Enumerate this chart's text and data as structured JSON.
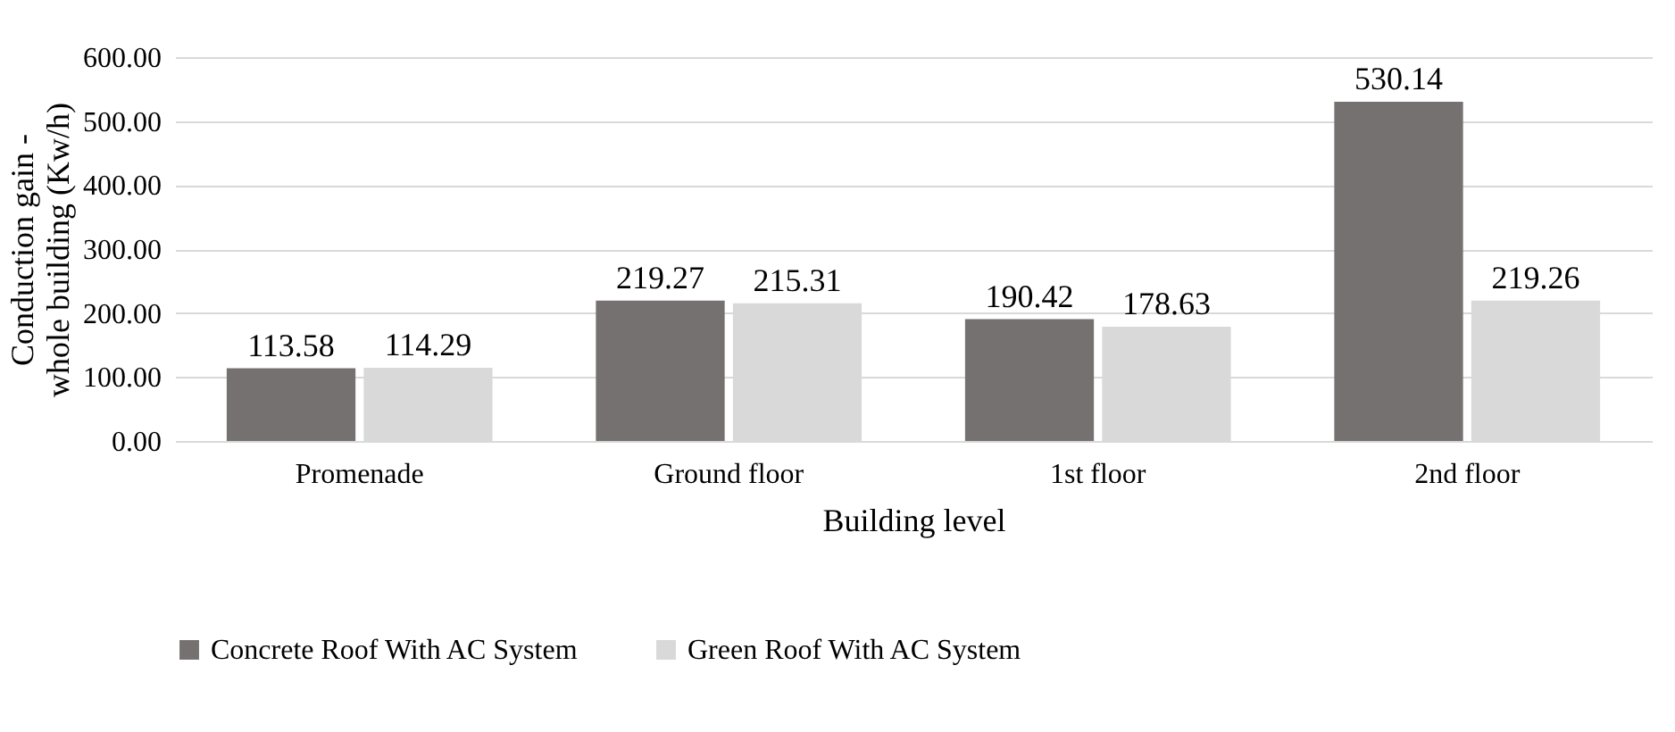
{
  "chart_data": {
    "type": "bar",
    "xlabel": "Building level",
    "ylabel": "Conduction gain -\nwhole building (Kw/h)",
    "categories": [
      "Promenade",
      "Ground floor",
      "1st floor",
      "2nd floor"
    ],
    "series": [
      {
        "name": "Concrete Roof With AC System",
        "color": "#767171",
        "values": [
          113.58,
          219.27,
          190.42,
          530.14
        ]
      },
      {
        "name": "Green Roof With AC System",
        "color": "#d9d9d9",
        "values": [
          114.29,
          215.31,
          178.63,
          219.26
        ]
      }
    ],
    "ylim": [
      0,
      600
    ],
    "yticks": [
      {
        "value": 0,
        "label": "0.00"
      },
      {
        "value": 100,
        "label": "100.00"
      },
      {
        "value": 200,
        "label": "200.00"
      },
      {
        "value": 300,
        "label": "300.00"
      },
      {
        "value": 400,
        "label": "400.00"
      },
      {
        "value": 500,
        "label": "500.00"
      },
      {
        "value": 600,
        "label": "600.00"
      }
    ],
    "grid": "y",
    "legend": "bottom",
    "data_labels": true
  }
}
